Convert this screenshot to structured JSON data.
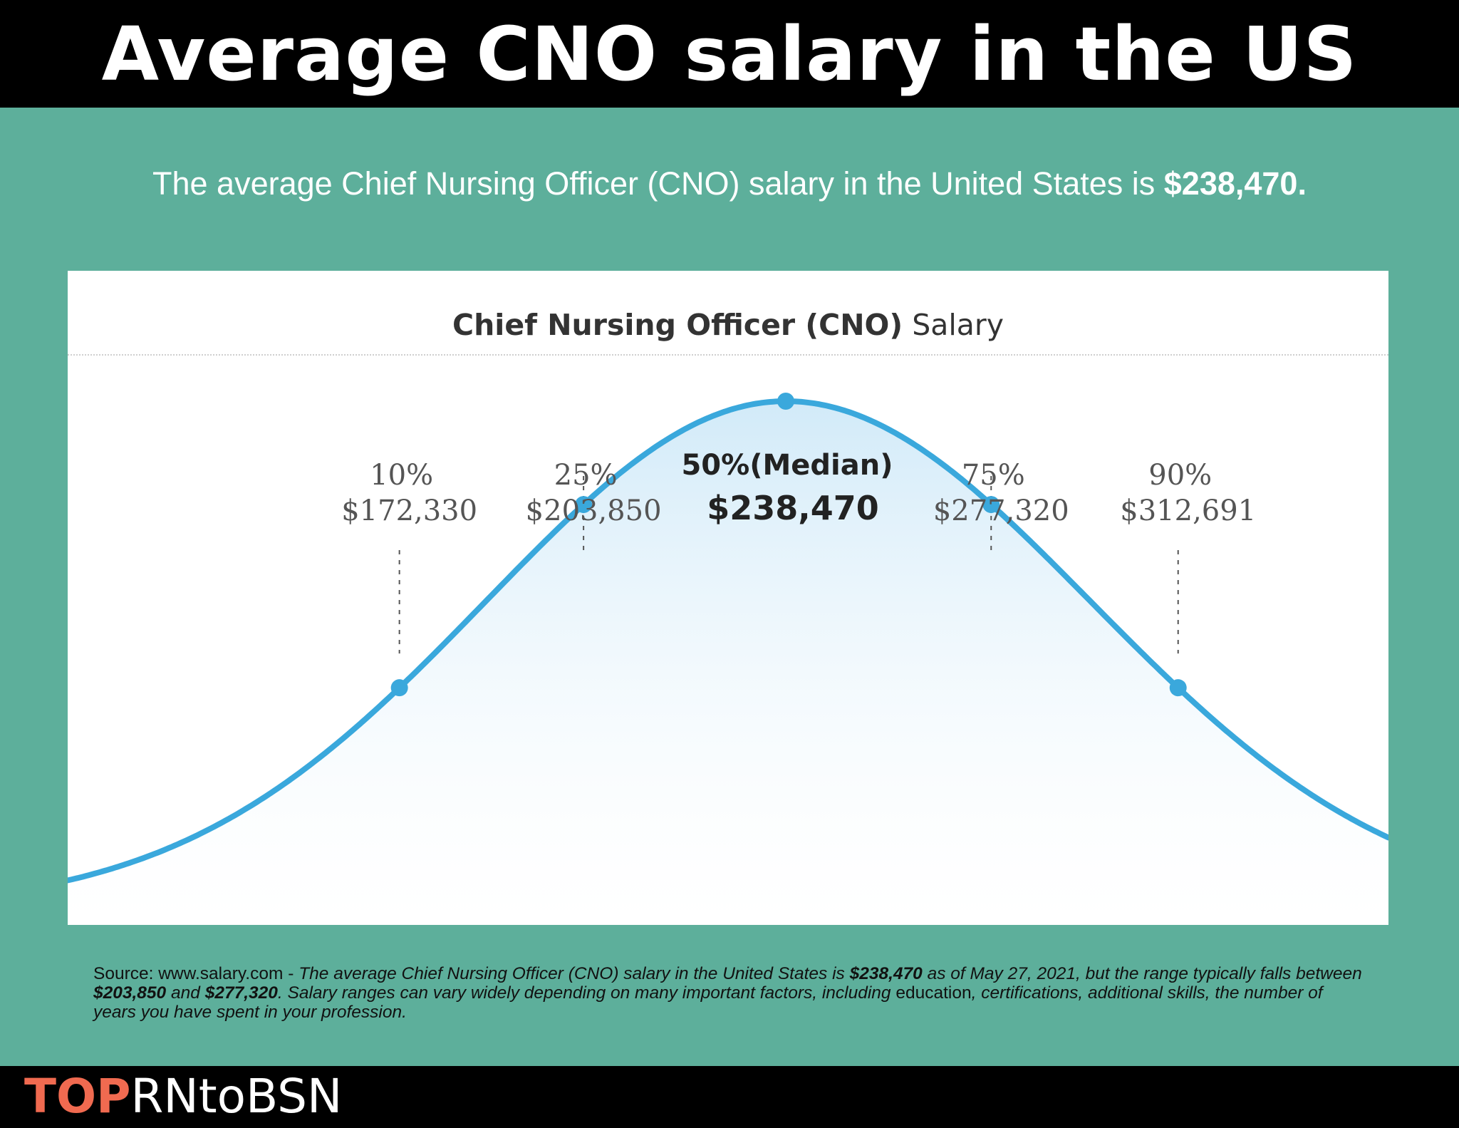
{
  "header": {
    "title": "Average CNO salary in the US"
  },
  "subtitle": {
    "text": "The average Chief Nursing Officer (CNO) salary in the United States is ",
    "amount": "$238,470."
  },
  "chart_data": {
    "type": "line",
    "title_bold": "Chief Nursing Officer (CNO)",
    "title_rest": "Salary",
    "curve_color": "#3aa8dc",
    "fill_color": "#dceffa",
    "percentiles": [
      {
        "label": "10%",
        "value": 172330,
        "value_label": "$172,330"
      },
      {
        "label": "25%",
        "value": 203850,
        "value_label": "$203,850"
      },
      {
        "label": "50%(Median)",
        "value": 238470,
        "value_label": "$238,470",
        "median": true
      },
      {
        "label": "75%",
        "value": 277320,
        "value_label": "$277,320"
      },
      {
        "label": "90%",
        "value": 312691,
        "value_label": "$312,691"
      }
    ]
  },
  "source": {
    "p1": "Source: www.salary.com - ",
    "p2": "The average Chief Nursing Officer (CNO) salary in the United States is ",
    "b1": "$238,470",
    "p3": " as of May 27, 2021, but the range typically falls between ",
    "b2": "$203,850",
    "p4": " and ",
    "b3": "$277,320",
    "p5": ". Salary ranges can vary widely depending on many important factors, including ",
    "n1": "education",
    "p6": ", certifications, additional skills, ",
    "n2": "the number of years",
    "p7": " you have spent in your profession."
  },
  "footer": {
    "logo_top": "TOP",
    "logo_rest": "RNtoBSN"
  }
}
